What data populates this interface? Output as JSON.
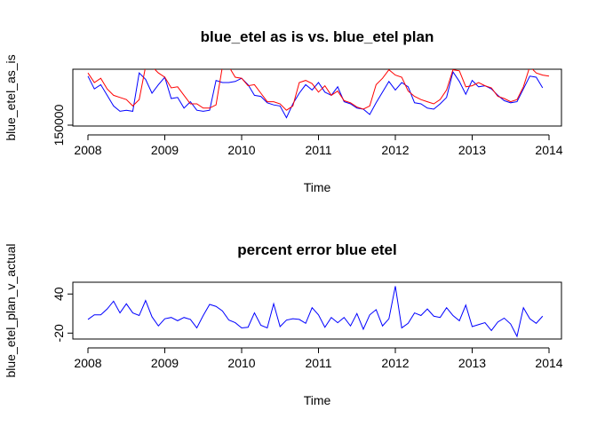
{
  "chart_data": [
    {
      "type": "line",
      "title": "blue_etel as is vs. blue_etel plan",
      "xlabel": "Time",
      "ylabel": "blue_etel_as_is",
      "xlim": [
        2008,
        2014
      ],
      "ylim": [
        150000,
        200000
      ],
      "x_ticks": [
        "2008",
        "2009",
        "2010",
        "2011",
        "2012",
        "2013",
        "2014"
      ],
      "y_ticks": [
        {
          "value": 150000,
          "label": "150000"
        }
      ],
      "grid": false,
      "legend": "none",
      "x_start": 2008,
      "x_step": 0.0833333,
      "series": [
        {
          "color": "#0000ff",
          "values": [
            196000,
            184000,
            188000,
            178000,
            168000,
            163000,
            164000,
            163000,
            199000,
            193000,
            180000,
            188000,
            195000,
            175000,
            176000,
            166000,
            172000,
            164000,
            163000,
            164000,
            192000,
            190000,
            190000,
            191000,
            194000,
            188000,
            178000,
            177000,
            171000,
            169000,
            168000,
            157000,
            170000,
            180000,
            188000,
            183000,
            190000,
            181000,
            178000,
            186000,
            172000,
            170000,
            166000,
            165000,
            160000,
            171000,
            181000,
            191000,
            183000,
            190000,
            186000,
            171000,
            170000,
            166000,
            165000,
            170000,
            176000,
            200000,
            191000,
            179000,
            192000,
            186000,
            187000,
            184000,
            178000,
            173000,
            171000,
            172000,
            184000,
            196000,
            195000,
            185000
          ]
        },
        {
          "color": "#ff0000",
          "values": [
            199000,
            190000,
            194000,
            184000,
            178000,
            176000,
            174000,
            168000,
            174000,
            205000,
            205000,
            199000,
            195000,
            185000,
            186000,
            178000,
            170000,
            170000,
            166000,
            166000,
            169000,
            205000,
            205000,
            195000,
            194000,
            187000,
            188000,
            180000,
            172000,
            172000,
            170000,
            164000,
            168000,
            190000,
            192000,
            189000,
            181000,
            187000,
            178000,
            182000,
            173000,
            171000,
            167000,
            165000,
            168000,
            188000,
            194000,
            202000,
            197000,
            195000,
            182000,
            177000,
            174000,
            172000,
            170000,
            174000,
            183000,
            202000,
            201000,
            186000,
            187000,
            190000,
            187000,
            185000,
            177000,
            175000,
            172000,
            174000,
            186000,
            205000,
            199000,
            197000,
            196000
          ]
        }
      ]
    },
    {
      "type": "line",
      "title": "percent error blue etel",
      "xlabel": "Time",
      "ylabel": "blue_etel_plan_v_actual",
      "xlim": [
        2008,
        2014
      ],
      "ylim": [
        -25,
        54
      ],
      "x_ticks": [
        "2008",
        "2009",
        "2010",
        "2011",
        "2012",
        "2013",
        "2014"
      ],
      "y_ticks": [
        {
          "value": 40,
          "label": "40"
        },
        {
          "value": -20,
          "label": "-20"
        }
      ],
      "grid": false,
      "legend": "none",
      "x_start": 2008,
      "x_step": 0.0833333,
      "series": [
        {
          "color": "#0000ff",
          "values": [
            1,
            8,
            8,
            17,
            29,
            11,
            25,
            11,
            7,
            30,
            5,
            -9,
            2,
            4,
            -1,
            4,
            1,
            -12,
            7,
            24,
            21,
            14,
            0,
            -4,
            -12,
            -11,
            11,
            -8,
            -12,
            25,
            -10,
            0,
            2,
            1,
            -5,
            19,
            8,
            -11,
            4,
            -4,
            4,
            -9,
            10,
            -14,
            8,
            16,
            -9,
            2,
            52,
            -12,
            -5,
            11,
            7,
            17,
            6,
            4,
            19,
            7,
            -1,
            23,
            -10,
            -7,
            -4,
            -16,
            -3,
            3,
            -6,
            -25,
            19,
            2,
            -5,
            6
          ]
        }
      ]
    }
  ]
}
